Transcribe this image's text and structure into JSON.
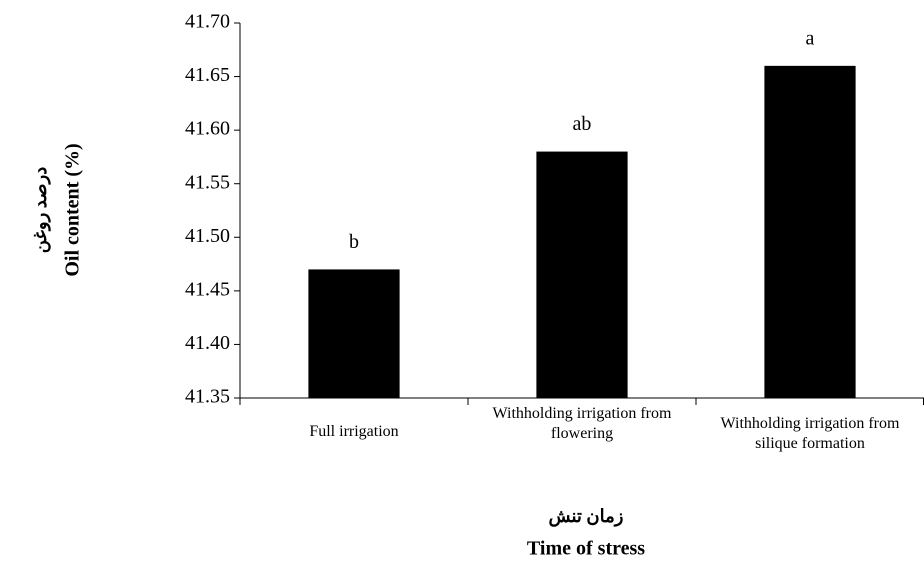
{
  "chart_data": {
    "type": "bar",
    "categories": [
      "Full irrigation",
      "Withholding irrigation from flowering",
      "Withholding irrigation from silique formation"
    ],
    "values": [
      41.47,
      41.58,
      41.66
    ],
    "annotations": [
      "b",
      "ab",
      "a"
    ],
    "color": "#000000",
    "ylim": [
      41.35,
      41.7
    ],
    "yticks": [
      {
        "value": 41.35,
        "label": "41.35"
      },
      {
        "value": 41.4,
        "label": "41.40"
      },
      {
        "value": 41.45,
        "label": "41.45"
      },
      {
        "value": 41.5,
        "label": "41.50"
      },
      {
        "value": 41.55,
        "label": "41.55"
      },
      {
        "value": 41.6,
        "label": "41.60"
      },
      {
        "value": 41.65,
        "label": "41.65"
      },
      {
        "value": 41.7,
        "label": "41.70"
      }
    ],
    "ylabel": [
      "درصد روغن",
      "Oil content (%)"
    ],
    "xlabel": [
      "زمان تنش",
      "Time of stress"
    ],
    "grid": false
  }
}
